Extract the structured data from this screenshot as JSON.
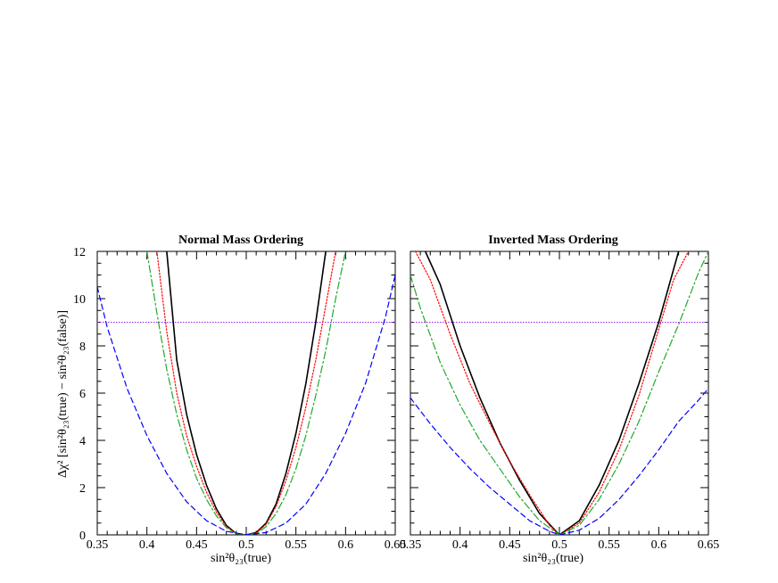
{
  "colors": {
    "black_solid": "#000000",
    "red_dotted": "#ff0000",
    "green_dashdot": "#22a82b",
    "blue_dashed": "#0000ff",
    "threshold_line": "#a020f0"
  },
  "chart_data": [
    {
      "type": "line",
      "title": "Normal Mass Ordering",
      "xlabel": "sin²θ₂₃(true)",
      "ylabel": "Δχ² [sin²θ₂₃(true) − sin²θ₂₃(false)]",
      "xlim": [
        0.35,
        0.65
      ],
      "ylim": [
        0,
        12
      ],
      "xticks": [
        "0.35",
        "0.4",
        "0.45",
        "0.5",
        "0.55",
        "0.6",
        "0.65"
      ],
      "yticks": [
        "0",
        "2",
        "4",
        "6",
        "8",
        "10",
        "12"
      ],
      "grid": false,
      "hline": 9,
      "series": [
        {
          "style": "solid",
          "color": "#000000",
          "x": [
            0.42,
            0.43,
            0.44,
            0.45,
            0.46,
            0.47,
            0.48,
            0.49,
            0.5,
            0.51,
            0.52,
            0.53,
            0.54,
            0.55,
            0.56,
            0.57,
            0.58
          ],
          "y": [
            12.0,
            7.4,
            5.1,
            3.4,
            2.1,
            1.1,
            0.4,
            0.05,
            0.0,
            0.1,
            0.5,
            1.3,
            2.6,
            4.3,
            6.4,
            9.0,
            12.0
          ]
        },
        {
          "style": "dotted",
          "color": "#ff0000",
          "x": [
            0.41,
            0.42,
            0.43,
            0.44,
            0.45,
            0.46,
            0.47,
            0.48,
            0.49,
            0.5,
            0.51,
            0.52,
            0.53,
            0.54,
            0.55,
            0.56,
            0.57,
            0.58,
            0.59
          ],
          "y": [
            12.0,
            8.6,
            6.0,
            4.2,
            2.9,
            1.8,
            0.95,
            0.35,
            0.05,
            0.0,
            0.08,
            0.45,
            1.2,
            2.3,
            3.7,
            5.4,
            7.4,
            9.7,
            12.0
          ]
        },
        {
          "style": "dashdot",
          "color": "#22a82b",
          "x": [
            0.4,
            0.41,
            0.42,
            0.43,
            0.44,
            0.45,
            0.46,
            0.47,
            0.48,
            0.49,
            0.5,
            0.51,
            0.52,
            0.53,
            0.54,
            0.55,
            0.56,
            0.57,
            0.58,
            0.59,
            0.6
          ],
          "y": [
            12.0,
            9.4,
            7.0,
            5.1,
            3.6,
            2.4,
            1.5,
            0.8,
            0.3,
            0.05,
            0.0,
            0.05,
            0.35,
            0.9,
            1.7,
            2.8,
            4.2,
            5.9,
            7.8,
            10.0,
            12.0
          ]
        },
        {
          "style": "dashed",
          "color": "#0000ff",
          "x": [
            0.35,
            0.36,
            0.38,
            0.4,
            0.42,
            0.44,
            0.46,
            0.48,
            0.5,
            0.52,
            0.54,
            0.56,
            0.58,
            0.6,
            0.62,
            0.64,
            0.65
          ],
          "y": [
            10.5,
            8.8,
            6.2,
            4.2,
            2.6,
            1.4,
            0.6,
            0.15,
            0.0,
            0.1,
            0.5,
            1.3,
            2.6,
            4.3,
            6.4,
            9.2,
            11.0
          ]
        }
      ]
    },
    {
      "type": "line",
      "title": "Inverted Mass Ordering",
      "xlabel": "sin²θ₂₃(true)",
      "ylabel": "",
      "xlim": [
        0.35,
        0.65
      ],
      "ylim": [
        0,
        12
      ],
      "xticks": [
        "0.35",
        "0.4",
        "0.45",
        "0.5",
        "0.55",
        "0.6",
        "0.65"
      ],
      "yticks": [
        "0",
        "2",
        "4",
        "6",
        "8",
        "10",
        "12"
      ],
      "grid": false,
      "hline": 9,
      "series": [
        {
          "style": "solid",
          "color": "#000000",
          "x": [
            0.365,
            0.38,
            0.4,
            0.42,
            0.44,
            0.46,
            0.48,
            0.5,
            0.52,
            0.54,
            0.56,
            0.58,
            0.6,
            0.62
          ],
          "y": [
            12.0,
            10.6,
            8.0,
            5.8,
            3.9,
            2.3,
            0.9,
            0.0,
            0.6,
            2.1,
            4.0,
            6.4,
            9.0,
            12.0
          ]
        },
        {
          "style": "dotted",
          "color": "#ff0000",
          "x": [
            0.355,
            0.37,
            0.39,
            0.41,
            0.43,
            0.45,
            0.47,
            0.49,
            0.5,
            0.52,
            0.54,
            0.56,
            0.58,
            0.6,
            0.615,
            0.63
          ],
          "y": [
            12.0,
            10.8,
            8.5,
            6.4,
            4.7,
            3.1,
            1.7,
            0.4,
            0.0,
            0.5,
            1.8,
            3.6,
            5.9,
            8.7,
            10.8,
            12.0
          ]
        },
        {
          "style": "dashdot",
          "color": "#22a82b",
          "x": [
            0.35,
            0.36,
            0.38,
            0.4,
            0.42,
            0.44,
            0.46,
            0.48,
            0.5,
            0.52,
            0.54,
            0.56,
            0.58,
            0.6,
            0.62,
            0.64,
            0.65
          ],
          "y": [
            11.0,
            9.6,
            7.3,
            5.5,
            4.0,
            2.8,
            1.6,
            0.6,
            0.0,
            0.4,
            1.5,
            3.0,
            4.8,
            6.9,
            8.9,
            11.1,
            12.0
          ]
        },
        {
          "style": "dashed",
          "color": "#0000ff",
          "x": [
            0.35,
            0.37,
            0.39,
            0.41,
            0.43,
            0.45,
            0.47,
            0.49,
            0.5,
            0.52,
            0.54,
            0.56,
            0.58,
            0.6,
            0.62,
            0.64,
            0.65
          ],
          "y": [
            5.8,
            4.7,
            3.7,
            2.8,
            2.0,
            1.3,
            0.6,
            0.15,
            0.0,
            0.2,
            0.7,
            1.5,
            2.5,
            3.6,
            4.8,
            5.7,
            6.2
          ]
        }
      ]
    }
  ]
}
